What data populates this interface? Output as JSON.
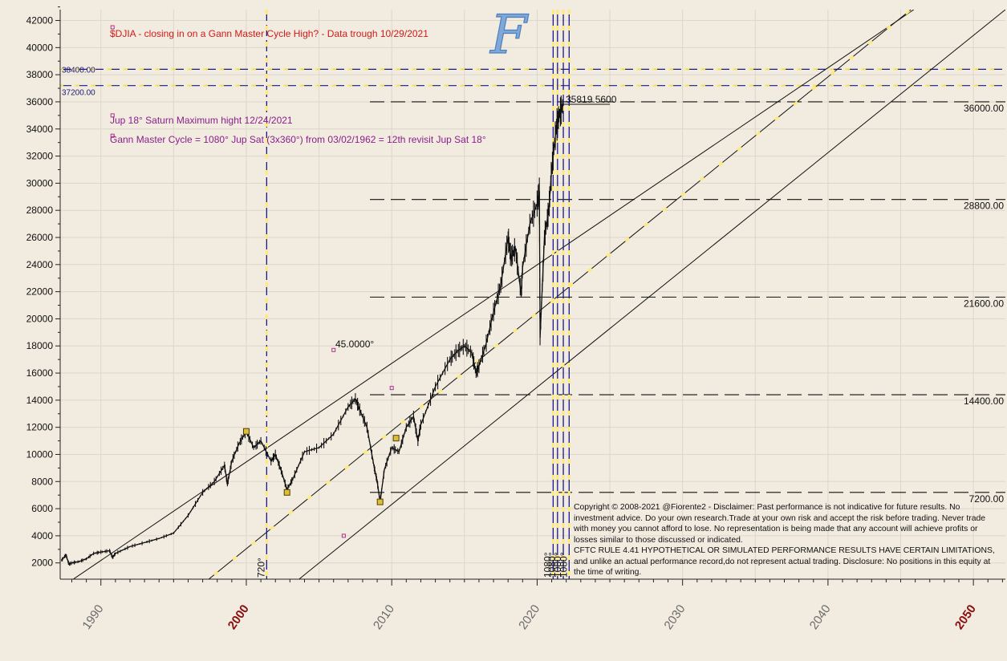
{
  "chart_data": {
    "type": "line",
    "title": "$DJIA - closing in on a Gann Master Cycle High? - Data trough 10/29/2021",
    "annotations": [
      "Jup 18° Saturn Maximum hight 12/24/2021",
      "Gann Master Cycle = 1080° Jup Sat (3x360°) from 03/02/1962 = 12th revisit Jup Sat 18°",
      "45.0000°",
      "35819.5600"
    ],
    "xlim": [
      1987.2,
      2052.2
    ],
    "ylim": [
      800,
      42800
    ],
    "x_ticks": [
      {
        "label": "1990",
        "value": 1990,
        "emph": false
      },
      {
        "label": "2000",
        "value": 2000,
        "emph": true
      },
      {
        "label": "2010",
        "value": 2010,
        "emph": false
      },
      {
        "label": "2020",
        "value": 2020,
        "emph": false
      },
      {
        "label": "2030",
        "value": 2030,
        "emph": false
      },
      {
        "label": "2040",
        "value": 2040,
        "emph": false
      },
      {
        "label": "2050",
        "value": 2050,
        "emph": true
      }
    ],
    "y_ticks": [
      2000,
      4000,
      6000,
      8000,
      10000,
      12000,
      14000,
      16000,
      18000,
      20000,
      22000,
      24000,
      26000,
      28000,
      30000,
      32000,
      34000,
      36000,
      38000,
      40000,
      42000
    ],
    "horizontal_levels": [
      {
        "value": 36000,
        "label": "36000.00"
      },
      {
        "value": 28800,
        "label": "28800.00"
      },
      {
        "value": 21600,
        "label": "21600.00"
      },
      {
        "value": 14400,
        "label": "14400.00"
      },
      {
        "value": 7200,
        "label": "7200.00"
      }
    ],
    "blue_levels": [
      {
        "value": 38400,
        "label": "38400.00"
      },
      {
        "value": 37200,
        "label": "37200.00"
      }
    ],
    "vertical_cycles": [
      {
        "x": 2001.4,
        "label": "720°"
      },
      {
        "x": 2021.1,
        "label": "1080°"
      },
      {
        "x": 2021.4,
        "label": "1080°"
      },
      {
        "x": 2021.8,
        "label": "1080°"
      },
      {
        "x": 2022.2,
        "label": "1080°"
      }
    ],
    "gann_lines": [
      {
        "name": "upper",
        "from": [
          1987.0,
          0
        ],
        "to": [
          2045.9,
          42800
        ]
      },
      {
        "name": "middle",
        "from": [
          1996.5,
          0
        ],
        "to": [
          2045.7,
          42800
        ]
      },
      {
        "name": "lower",
        "from": [
          2002.7,
          0
        ],
        "to": [
          2052.2,
          42800
        ]
      }
    ],
    "pivots": [
      {
        "x": 2000.0,
        "y": 11700
      },
      {
        "x": 2002.8,
        "y": 7200
      },
      {
        "x": 2009.2,
        "y": 6500
      },
      {
        "x": 2010.3,
        "y": 11200
      }
    ],
    "series": [
      {
        "name": "",
        "x": [
          1987.3,
          1987.6,
          1987.8,
          1988.0,
          1988.5,
          1989.0,
          1989.5,
          1990.0,
          1990.6,
          1990.8,
          1991.0,
          1992.0,
          1993.0,
          1994.0,
          1995.0,
          1996.0,
          1997.0,
          1997.8,
          1998.5,
          1998.7,
          1999.0,
          1999.5,
          2000.0,
          2000.5,
          2001.0,
          2001.7,
          2002.0,
          2002.4,
          2002.8,
          2003.2,
          2004.0,
          2005.0,
          2006.0,
          2007.0,
          2007.5,
          2007.8,
          2008.3,
          2008.8,
          2009.0,
          2009.2,
          2009.5,
          2010.0,
          2010.5,
          2011.0,
          2011.5,
          2011.8,
          2012.0,
          2013.0,
          2014.0,
          2014.5,
          2015.0,
          2015.5,
          2015.8,
          2016.0,
          2016.5,
          2017.0,
          2017.5,
          2018.0,
          2018.2,
          2018.5,
          2018.9,
          2019.0,
          2019.5,
          2020.0,
          2020.15,
          2020.2,
          2020.5,
          2020.8,
          2021.0,
          2021.3,
          2021.5,
          2021.8
        ],
        "values": [
          2200,
          2600,
          1900,
          2000,
          2100,
          2300,
          2700,
          2800,
          2900,
          2400,
          2700,
          3200,
          3500,
          3800,
          4200,
          5500,
          7200,
          8000,
          9200,
          7800,
          9500,
          10800,
          11700,
          10500,
          11000,
          9500,
          10000,
          8800,
          7400,
          8200,
          10200,
          10500,
          11500,
          13500,
          14100,
          13300,
          12000,
          9000,
          8000,
          6500,
          8900,
          10500,
          10200,
          12000,
          12800,
          11000,
          12200,
          15000,
          17000,
          17600,
          18000,
          17500,
          16000,
          16500,
          18200,
          20500,
          22500,
          26000,
          24500,
          25200,
          21800,
          23800,
          27000,
          28500,
          29400,
          18600,
          26000,
          28000,
          31000,
          34000,
          35000,
          35800
        ]
      }
    ],
    "grid": true,
    "colors": {
      "title": "#d11a1a",
      "annotation": "#8a1f8a",
      "cycle_line": "#1a1a8a",
      "axis_emph": "#8a0d0d",
      "price": "#111111",
      "yellow_dash": "#ffe97a"
    }
  },
  "logo": {
    "text": "F"
  },
  "disclaimer": {
    "p1": "Copyright © 2008-2021 @Fiorente2 -  Disclaimer: Past performance is not indicative for future results. No investment advice. Do your own research.Trade at your own risk and accept the risk before trading. Never trade with money you cannot afford to lose. No representation is being made that any account will achieve profits or losses similar to those discussed or indicated.",
    "p2": "CFTC RULE 4.41 HYPOTHETICAL OR SIMULATED PERFORMANCE RESULTS HAVE CERTAIN LIMITATIONS, and unlike an actual performance record,do not represent actual trading. Disclosure: No positions in this equity at the time of writing."
  }
}
